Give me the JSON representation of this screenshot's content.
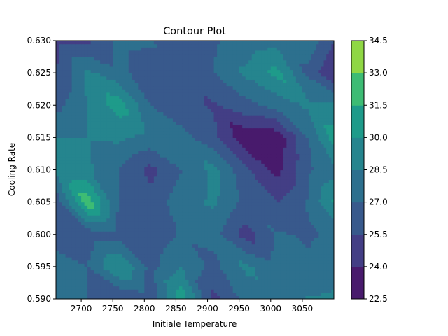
{
  "chart_data": {
    "type": "contour",
    "title": "Contour Plot",
    "xlabel": "Initiale Temperature",
    "ylabel": "Cooling Rate",
    "xlim": [
      2660,
      3100
    ],
    "ylim": [
      0.59,
      0.63
    ],
    "x_ticks": [
      2700,
      2750,
      2800,
      2850,
      2900,
      2950,
      3000,
      3050
    ],
    "y_ticks": [
      0.59,
      0.595,
      0.6,
      0.605,
      0.61,
      0.615,
      0.62,
      0.625,
      0.63
    ],
    "x_tick_labels": [
      "2700",
      "2750",
      "2800",
      "2850",
      "2900",
      "2950",
      "3000",
      "3050"
    ],
    "y_tick_labels": [
      "0.590",
      "0.595",
      "0.600",
      "0.605",
      "0.610",
      "0.615",
      "0.620",
      "0.625",
      "0.630"
    ],
    "x": [
      2660,
      2710,
      2760,
      2810,
      2860,
      2910,
      2960,
      3010,
      3060,
      3100
    ],
    "y": [
      0.59,
      0.595,
      0.6,
      0.605,
      0.61,
      0.615,
      0.62,
      0.625,
      0.63
    ],
    "z": [
      [
        28.6,
        27.0,
        25.5,
        26.0,
        31.0,
        25.0,
        27.5,
        28.0,
        28.6,
        28.8
      ],
      [
        27.5,
        27.0,
        30.2,
        26.5,
        28.5,
        26.5,
        28.8,
        27.5,
        27.2,
        28.0
      ],
      [
        26.5,
        26.0,
        26.2,
        26.0,
        27.2,
        27.5,
        24.8,
        27.2,
        26.8,
        27.2
      ],
      [
        26.0,
        32.5,
        27.0,
        26.0,
        28.0,
        28.8,
        26.5,
        25.5,
        27.2,
        30.2
      ],
      [
        28.6,
        28.8,
        27.0,
        25.0,
        27.0,
        29.0,
        25.8,
        23.5,
        26.8,
        28.0
      ],
      [
        28.6,
        28.6,
        28.8,
        28.0,
        27.5,
        26.0,
        22.8,
        23.0,
        27.0,
        30.8
      ],
      [
        26.5,
        28.6,
        30.8,
        27.0,
        26.0,
        25.3,
        26.5,
        27.5,
        28.8,
        28.8
      ],
      [
        25.5,
        28.8,
        27.5,
        26.0,
        26.0,
        27.0,
        28.8,
        30.5,
        26.5,
        24.0
      ],
      [
        25.0,
        25.3,
        27.5,
        27.2,
        25.5,
        26.8,
        27.5,
        28.0,
        28.0,
        25.5
      ]
    ],
    "levels": [
      22.5,
      24.0,
      25.5,
      27.0,
      28.5,
      30.0,
      31.5,
      33.0,
      34.5
    ],
    "level_colors": [
      "#481a6c",
      "#433e85",
      "#38598c",
      "#2d708e",
      "#25858e",
      "#1e9b8a",
      "#3dbc74",
      "#8fd744",
      "#dde318"
    ],
    "colorbar_tick_labels": [
      "22.5",
      "24.0",
      "25.5",
      "27.0",
      "28.5",
      "30.0",
      "31.5",
      "33.0",
      "34.5"
    ],
    "colorbar_position": "right",
    "grid": false
  }
}
